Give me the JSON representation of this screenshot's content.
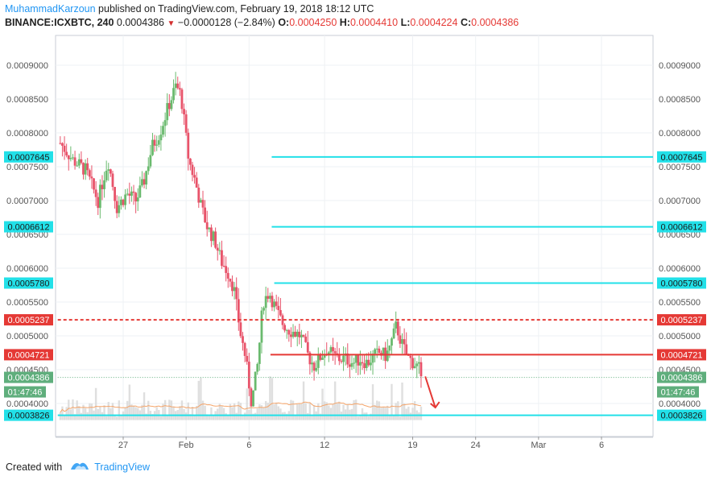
{
  "header": {
    "author": "MuhammadKarzoun",
    "published": "published on TradingView.com, February 19, 2018 18:12 UTC",
    "symbol": "BINANCE:ICXBTC, 240",
    "last": "0.0004386",
    "change": "−0.0000128 (−2.84%)",
    "o_label": "O:",
    "o": "0.0004250",
    "h_label": "H:",
    "h": "0.0004410",
    "l_label": "L:",
    "l": "0.0004224",
    "c_label": "C:",
    "c": "0.0004386"
  },
  "footer": {
    "created_with": "Created with",
    "brand": "TradingView"
  },
  "colors": {
    "up": "#6aba6e",
    "down": "#e8536a",
    "cyan": "#22e0e8",
    "red": "#e53935",
    "grid": "#eef1f4",
    "volume": "#dcdcdc",
    "ma": "#f5a56a",
    "label_green": "#5fae7c"
  },
  "chart_data": {
    "type": "candlestick",
    "y_range": [
      0.00035,
      0.00095
    ],
    "y_ticks": [
      "0.0009000",
      "0.0008500",
      "0.0008000",
      "0.0007500",
      "0.0007000",
      "0.0006500",
      "0.0006000",
      "0.0005500",
      "0.0005000",
      "0.0004500",
      "0.0004000"
    ],
    "x_ticks": [
      {
        "label": "27",
        "day": 27
      },
      {
        "label": "Feb",
        "day": 32
      },
      {
        "label": "6",
        "day": 37
      },
      {
        "label": "12",
        "day": 43
      },
      {
        "label": "19",
        "day": 50
      },
      {
        "label": "24",
        "day": 55
      },
      {
        "label": "Mar",
        "day": 60
      },
      {
        "label": "6",
        "day": 65
      }
    ],
    "x_range_days": [
      21.8,
      67.4
    ],
    "price_points": [
      [
        22.0,
        0.000785
      ],
      [
        23.0,
        0.00076
      ],
      [
        24.0,
        0.000745
      ],
      [
        25.0,
        0.0007
      ],
      [
        25.8,
        0.00076
      ],
      [
        26.5,
        0.00069
      ],
      [
        27.3,
        0.00071
      ],
      [
        28.0,
        0.0007
      ],
      [
        28.6,
        0.000725
      ],
      [
        29.3,
        0.00078
      ],
      [
        29.9,
        0.0008
      ],
      [
        30.6,
        0.00084
      ],
      [
        31.2,
        0.00087
      ],
      [
        31.6,
        0.000855
      ],
      [
        32.2,
        0.00076
      ],
      [
        32.7,
        0.00073
      ],
      [
        33.2,
        0.00069
      ],
      [
        33.7,
        0.00066
      ],
      [
        34.3,
        0.00064
      ],
      [
        34.8,
        0.00061
      ],
      [
        35.3,
        0.000595
      ],
      [
        35.8,
        0.00057
      ],
      [
        36.3,
        0.000505
      ],
      [
        36.7,
        0.00047
      ],
      [
        37.2,
        0.0004
      ],
      [
        37.7,
        0.00046
      ],
      [
        38.1,
        0.00055
      ],
      [
        38.6,
        0.000565
      ],
      [
        39.1,
        0.00054
      ],
      [
        39.6,
        0.00052
      ],
      [
        40.1,
        0.00051
      ],
      [
        40.6,
        0.000505
      ],
      [
        41.1,
        0.0005
      ],
      [
        41.7,
        0.00047
      ],
      [
        42.2,
        0.000455
      ],
      [
        42.7,
        0.00047
      ],
      [
        43.2,
        0.00048
      ],
      [
        43.7,
        0.00047
      ],
      [
        44.2,
        0.000466
      ],
      [
        44.7,
        0.000466
      ],
      [
        45.3,
        0.00046
      ],
      [
        45.8,
        0.000466
      ],
      [
        46.4,
        0.00046
      ],
      [
        46.9,
        0.00047
      ],
      [
        47.4,
        0.000475
      ],
      [
        47.9,
        0.00047
      ],
      [
        48.3,
        0.00049
      ],
      [
        48.7,
        0.000515
      ],
      [
        49.1,
        0.00049
      ],
      [
        49.6,
        0.000468
      ],
      [
        50.1,
        0.00046
      ],
      [
        50.5,
        0.000452
      ],
      [
        50.7,
        0.000425
      ]
    ],
    "horizontal_lines": [
      {
        "value": "0.0007645",
        "color": "cyan",
        "style": "solid",
        "from_day": 38.8
      },
      {
        "value": "0.0006612",
        "color": "cyan",
        "style": "solid",
        "from_day": 38.8
      },
      {
        "value": "0.0005780",
        "color": "cyan",
        "style": "solid",
        "from_day": 39.0
      },
      {
        "value": "0.0005237",
        "color": "red",
        "style": "dashed",
        "from_day": 21.8
      },
      {
        "value": "0.0004721",
        "color": "red",
        "style": "solid",
        "from_day": 38.7
      },
      {
        "value": "0.0004386",
        "color": "green",
        "style": "dotted",
        "from_day": 21.8
      },
      {
        "value": "0.0003826",
        "color": "cyan",
        "style": "solid",
        "from_day": 21.8
      }
    ],
    "countdown": "01:47:46",
    "projection_arrow": {
      "from": [
        51.0,
        0.00044
      ],
      "to": [
        51.8,
        0.000394
      ]
    }
  }
}
